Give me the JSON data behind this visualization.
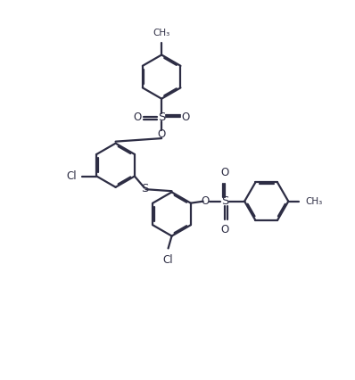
{
  "bg_color": "#ffffff",
  "line_color": "#2d2d44",
  "line_width": 1.6,
  "fig_width": 3.98,
  "fig_height": 4.26,
  "dpi": 100,
  "xlim": [
    0,
    10
  ],
  "ylim": [
    0,
    10.7
  ]
}
